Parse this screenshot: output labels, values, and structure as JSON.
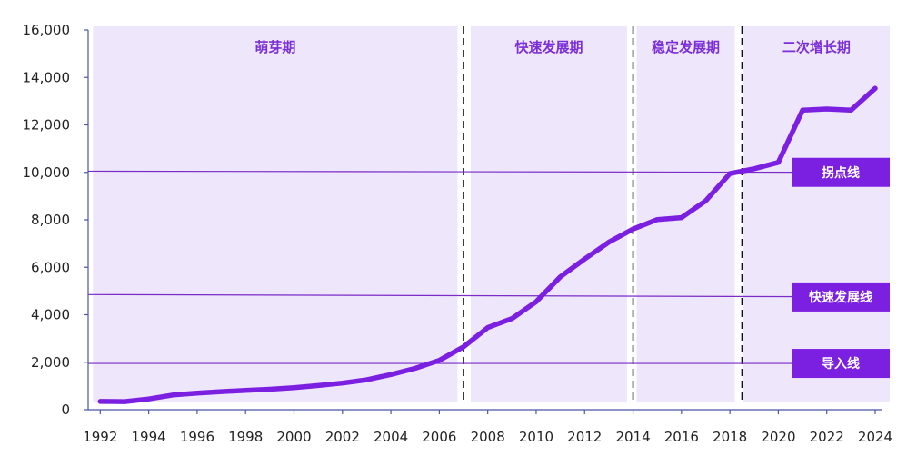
{
  "chart_data": {
    "type": "line",
    "x": [
      1992,
      1993,
      1994,
      1995,
      1996,
      1997,
      1998,
      1999,
      2000,
      2001,
      2002,
      2003,
      2004,
      2005,
      2006,
      2007,
      2008,
      2009,
      2010,
      2011,
      2012,
      2013,
      2014,
      2015,
      2016,
      2017,
      2018,
      2019,
      2020,
      2021,
      2022,
      2023,
      2024
    ],
    "series": [
      {
        "values": [
          350,
          340,
          450,
          620,
          700,
          760,
          810,
          860,
          930,
          1020,
          1120,
          1260,
          1480,
          1740,
          2080,
          2650,
          3460,
          3840,
          4550,
          5600,
          6350,
          7060,
          7610,
          8010,
          8090,
          8800,
          9950,
          10150,
          10420,
          12620,
          12670,
          12620,
          13540
        ]
      }
    ],
    "xticks": [
      1992,
      1994,
      1996,
      1998,
      2000,
      2002,
      2004,
      2006,
      2008,
      2010,
      2012,
      2014,
      2016,
      2018,
      2020,
      2022,
      2024
    ],
    "yticks": [
      "0",
      "2,000",
      "4,000",
      "6,000",
      "8,000",
      "10,000",
      "12,000",
      "14,000",
      "16,000"
    ],
    "xlim": [
      1991.5,
      2024.6
    ],
    "ylim": [
      0,
      16000
    ],
    "phases": [
      {
        "label": "萌芽期",
        "start": 1991.7,
        "end": 2006.75
      },
      {
        "label": "快速发展期",
        "start": 2007.3,
        "end": 2013.75
      },
      {
        "label": "稳定发展期",
        "start": 2014.15,
        "end": 2018.2
      },
      {
        "label": "二次增长期",
        "start": 2018.55,
        "end": 2024.9
      }
    ],
    "dividers": [
      2007.0,
      2014.0,
      2018.5
    ],
    "reference_lines": [
      {
        "label": "拐点线",
        "y_start": 10050,
        "y_end": 10000
      },
      {
        "label": "快速发展线",
        "y_start": 4850,
        "y_end": 4750
      },
      {
        "label": "导入线",
        "y_start": 1950,
        "y_end": 1950
      }
    ],
    "grid": false,
    "title": "",
    "xlabel": "",
    "ylabel": "",
    "colors": {
      "line": "#7b1fe0",
      "band": "#eee6fa",
      "phase_text": "#7b2fd6",
      "ref_line": "#7a2bc8",
      "ref_label_bg": "#7b1fe0",
      "axis": "#4a55a8"
    }
  }
}
